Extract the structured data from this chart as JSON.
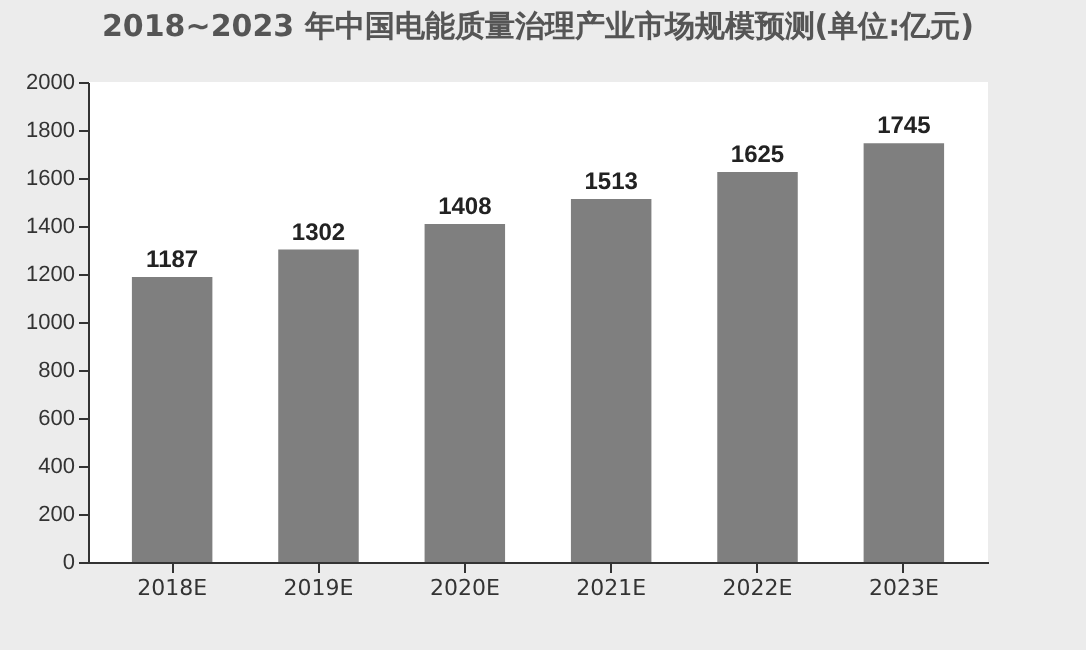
{
  "chart_data": {
    "type": "bar",
    "title": "2018~2023 年中国电能质量治理产业市场规模预测(单位:亿元)",
    "categories": [
      "2018E",
      "2019E",
      "2020E",
      "2021E",
      "2022E",
      "2023E"
    ],
    "values": [
      1187,
      1302,
      1408,
      1513,
      1625,
      1745
    ],
    "color": "#7f7f7f",
    "ylim": [
      0,
      2000
    ],
    "yticks": [
      0,
      200,
      400,
      600,
      800,
      1000,
      1200,
      1400,
      1600,
      1800,
      2000
    ],
    "data_labels": true
  }
}
